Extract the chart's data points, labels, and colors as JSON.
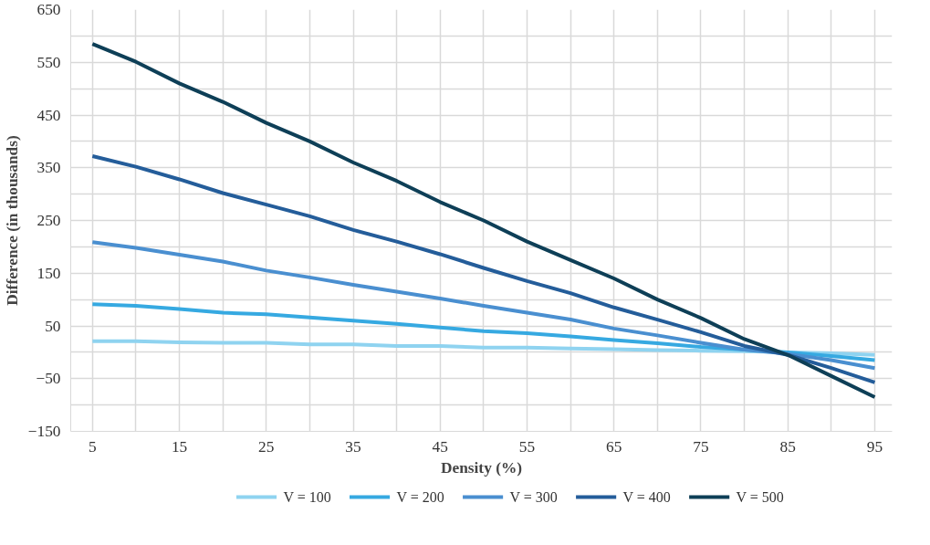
{
  "chart_data": {
    "type": "line",
    "xlabel": "Density (%)",
    "ylabel": "Difference (in thousands)",
    "x": [
      5,
      10,
      15,
      20,
      25,
      30,
      35,
      40,
      45,
      50,
      55,
      60,
      65,
      70,
      75,
      80,
      85,
      90,
      95
    ],
    "xlim": [
      2.5,
      97
    ],
    "xticks": [
      5,
      {
        "value": 10,
        "label": null
      },
      15,
      {
        "value": 20,
        "label": null
      },
      25,
      {
        "value": 30,
        "label": null
      },
      35,
      {
        "value": 40,
        "label": null
      },
      45,
      {
        "value": 50,
        "label": null
      },
      55,
      {
        "value": 60,
        "label": null
      },
      65,
      {
        "value": 70,
        "label": null
      },
      75,
      {
        "value": 80,
        "label": null
      },
      85,
      {
        "value": 90,
        "label": null
      },
      95
    ],
    "ylim": [
      -150,
      650
    ],
    "yticks": [
      {
        "value": -150,
        "label": "−150"
      },
      {
        "value": -100,
        "label": null
      },
      {
        "value": -50,
        "label": "−50"
      },
      {
        "value": 0,
        "label": null
      },
      50,
      {
        "value": 100,
        "label": null
      },
      150,
      {
        "value": 200,
        "label": null
      },
      250,
      {
        "value": 300,
        "label": null
      },
      350,
      {
        "value": 400,
        "label": null
      },
      450,
      {
        "value": 500,
        "label": null
      },
      550,
      {
        "value": 600,
        "label": null
      },
      650
    ],
    "grid": true,
    "legend": "bottom",
    "marker": "none",
    "line_style": "solid",
    "series": [
      {
        "name": "V = 100",
        "color": "#8fd3f0",
        "values": [
          21,
          21,
          19,
          18,
          18,
          15,
          15,
          12,
          12,
          9,
          9,
          7,
          6,
          4,
          3,
          2,
          0,
          -2,
          -5
        ]
      },
      {
        "name": "V = 200",
        "color": "#36a9e1",
        "values": [
          91,
          88,
          82,
          75,
          72,
          66,
          60,
          54,
          47,
          40,
          36,
          30,
          23,
          17,
          10,
          5,
          0,
          -7,
          -15
        ]
      },
      {
        "name": "V = 300",
        "color": "#4a8fd0",
        "values": [
          209,
          198,
          185,
          172,
          155,
          142,
          128,
          115,
          102,
          88,
          75,
          62,
          45,
          32,
          18,
          5,
          -3,
          -15,
          -30
        ]
      },
      {
        "name": "V = 400",
        "color": "#245d9a",
        "values": [
          372,
          352,
          328,
          302,
          280,
          258,
          232,
          210,
          186,
          160,
          135,
          112,
          85,
          62,
          38,
          12,
          -5,
          -30,
          -57
        ]
      },
      {
        "name": "V = 500",
        "color": "#0e3f57",
        "values": [
          585,
          551,
          510,
          475,
          435,
          400,
          360,
          325,
          285,
          250,
          210,
          175,
          140,
          100,
          65,
          25,
          -5,
          -45,
          -85
        ]
      }
    ]
  }
}
